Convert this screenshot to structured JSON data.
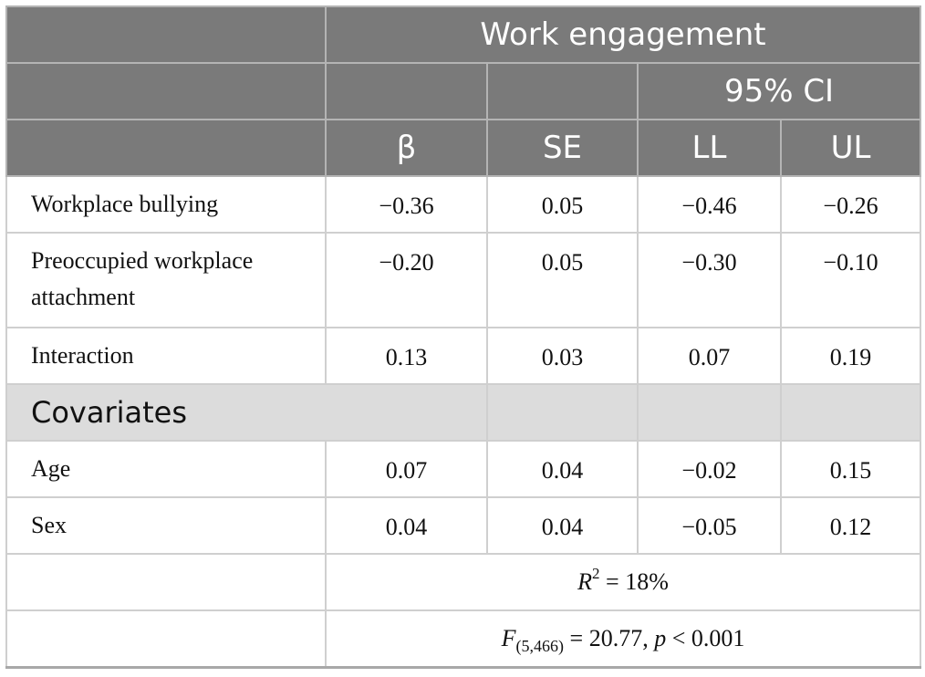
{
  "header": {
    "group_label": "Work engagement",
    "ci_label": "95% CI",
    "columns": [
      "β",
      "SE",
      "LL",
      "UL"
    ]
  },
  "rows": [
    {
      "label": "Workplace bullying",
      "values": [
        "−0.36",
        "0.05",
        "−0.46",
        "−0.26"
      ]
    },
    {
      "label": "Preoccupied workplace attachment",
      "values": [
        "−0.20",
        "0.05",
        "−0.30",
        "−0.10"
      ]
    },
    {
      "label": "Interaction",
      "values": [
        "0.13",
        "0.03",
        "0.07",
        "0.19"
      ]
    }
  ],
  "section": {
    "label": "Covariates"
  },
  "covariates": [
    {
      "label": "Age",
      "values": [
        "0.07",
        "0.04",
        "−0.02",
        "0.15"
      ]
    },
    {
      "label": "Sex",
      "values": [
        "0.04",
        "0.04",
        "−0.05",
        "0.12"
      ]
    }
  ],
  "stats": {
    "r2_symbol": "R",
    "r2_exp": "2",
    "r2_value": " = 18%",
    "f_symbol": "F",
    "f_sub": "(5,466)",
    "f_value": " = 20.77, ",
    "p_symbol": "p",
    "p_value": " < 0.001"
  }
}
